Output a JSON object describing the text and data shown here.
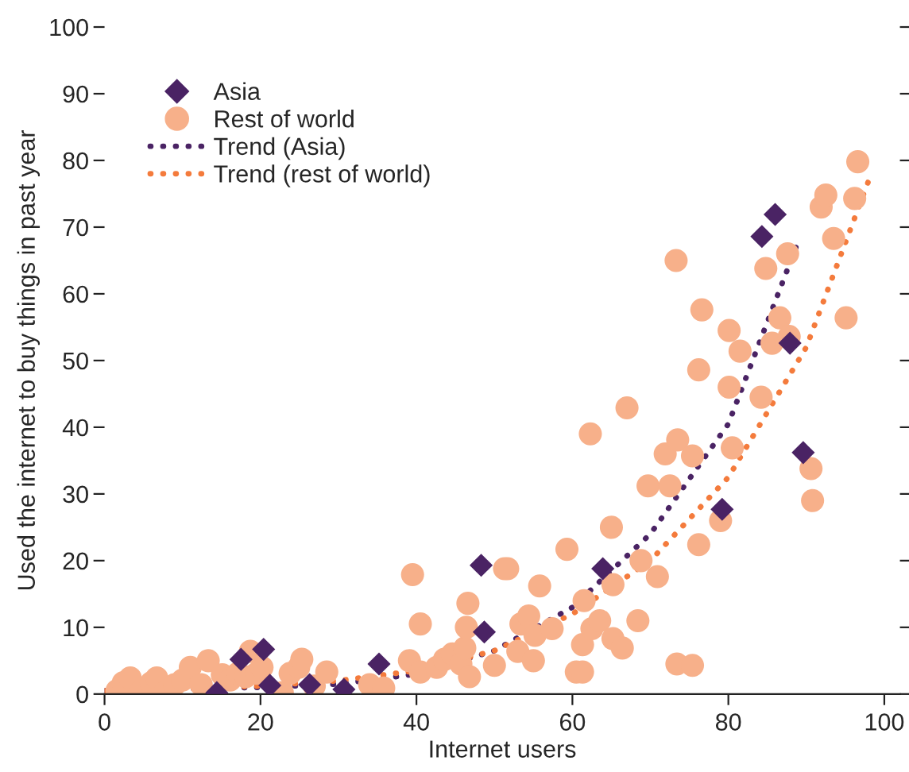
{
  "chart_data": {
    "type": "scatter",
    "xlabel": "Internet users",
    "ylabel": "Used the internet to buy things in past year",
    "xlim": [
      0,
      102
    ],
    "ylim": [
      0,
      100
    ],
    "xticks": [
      0,
      20,
      40,
      60,
      80,
      100
    ],
    "yticks": [
      0,
      10,
      20,
      30,
      40,
      50,
      60,
      70,
      80,
      90,
      100
    ],
    "grid": false,
    "legend": "top left",
    "series": [
      {
        "name": "Asia",
        "marker": "diamond",
        "color": "#4a2364",
        "x": [
          14.4,
          17.5,
          20.4,
          21.2,
          26.3,
          30.7,
          35.2,
          48.3,
          48.7,
          63.9,
          79.2,
          89.6,
          87.9,
          84.3,
          86.0
        ],
        "values": [
          0.2,
          5.2,
          6.7,
          1.3,
          1.4,
          0.7,
          4.5,
          19.3,
          9.3,
          18.8,
          27.7,
          36.2,
          52.6,
          68.6,
          71.9
        ]
      },
      {
        "name": "Rest of world",
        "marker": "circle",
        "color": "#f7b08a",
        "x": [
          1.6,
          2.4,
          3.3,
          4.5,
          6,
          6.7,
          7.7,
          9,
          10,
          11,
          12.4,
          13.3,
          15.1,
          16.1,
          17.1,
          18.1,
          18.7,
          19.5,
          20.2,
          22.8,
          23.8,
          24.9,
          25.3,
          26.9,
          28.5,
          34,
          35.8,
          39.5,
          40.5,
          39.1,
          40.5,
          42.6,
          43.6,
          44.6,
          45.7,
          46.2,
          46.6,
          46.4,
          46.8,
          51.7,
          51.3,
          55.8,
          59.3,
          53.4,
          54.4,
          55.2,
          57.4,
          53,
          55,
          50,
          60.5,
          61.3,
          61.3,
          62.5,
          63.5,
          61.5,
          65.2,
          65.2,
          66.4,
          68.4,
          68.8,
          70.9,
          69.7,
          72.5,
          71.9,
          73.5,
          75.4,
          62.3,
          67,
          65,
          76.2,
          79,
          73.4,
          75.4,
          73.3,
          76.6,
          76.2,
          80.1,
          81.5,
          80.1,
          80.5,
          84.2,
          84.8,
          87.6,
          86.6,
          85.6,
          87.8,
          90.6,
          90.8,
          93.5,
          95.1,
          91.9,
          92.5,
          96.6,
          96.2
        ],
        "values": [
          0.5,
          1.7,
          2.4,
          0.2,
          1.7,
          2.4,
          0.2,
          1.4,
          2.1,
          4,
          1.4,
          5,
          2.9,
          2.1,
          3.1,
          2.6,
          6.4,
          3.1,
          4,
          0.2,
          3.1,
          4,
          5.2,
          1.2,
          3.3,
          1.4,
          0.9,
          17.9,
          10.5,
          5,
          3.3,
          4,
          5.2,
          6,
          4.5,
          6.9,
          13.6,
          10,
          2.6,
          18.8,
          18.8,
          16.2,
          21.7,
          10.5,
          11.7,
          8.8,
          9.8,
          6.4,
          5,
          4.3,
          3.3,
          3.3,
          7.4,
          9.8,
          11,
          14,
          16.4,
          8.3,
          6.9,
          11,
          20,
          17.6,
          31.2,
          31.2,
          36,
          38.1,
          35.7,
          39,
          42.9,
          25,
          22.4,
          26,
          4.5,
          4.3,
          65,
          57.6,
          48.6,
          54.5,
          51.4,
          46,
          36.9,
          44.5,
          63.8,
          66,
          56.4,
          52.6,
          53.6,
          33.8,
          29,
          68.3,
          56.4,
          73,
          74.8,
          79.8,
          74.3
        ]
      },
      {
        "name": "Trend (Asia)",
        "type": "line",
        "line_style": "dotted",
        "color": "#4a2364",
        "x": [
          0,
          10,
          20,
          30,
          40,
          50,
          60,
          70,
          80,
          89
        ],
        "values": [
          0.5,
          0.8,
          1,
          1.5,
          3,
          6.5,
          13,
          24,
          40.5,
          68
        ]
      },
      {
        "name": "Trend (rest of world)",
        "type": "line",
        "line_style": "dotted",
        "color": "#f47b3c",
        "x": [
          0,
          10,
          20,
          30,
          40,
          50,
          60,
          70,
          80,
          90,
          98
        ],
        "values": [
          0.5,
          0.8,
          1.2,
          2,
          3.5,
          6.5,
          12,
          20,
          32.5,
          52,
          77
        ]
      }
    ]
  }
}
